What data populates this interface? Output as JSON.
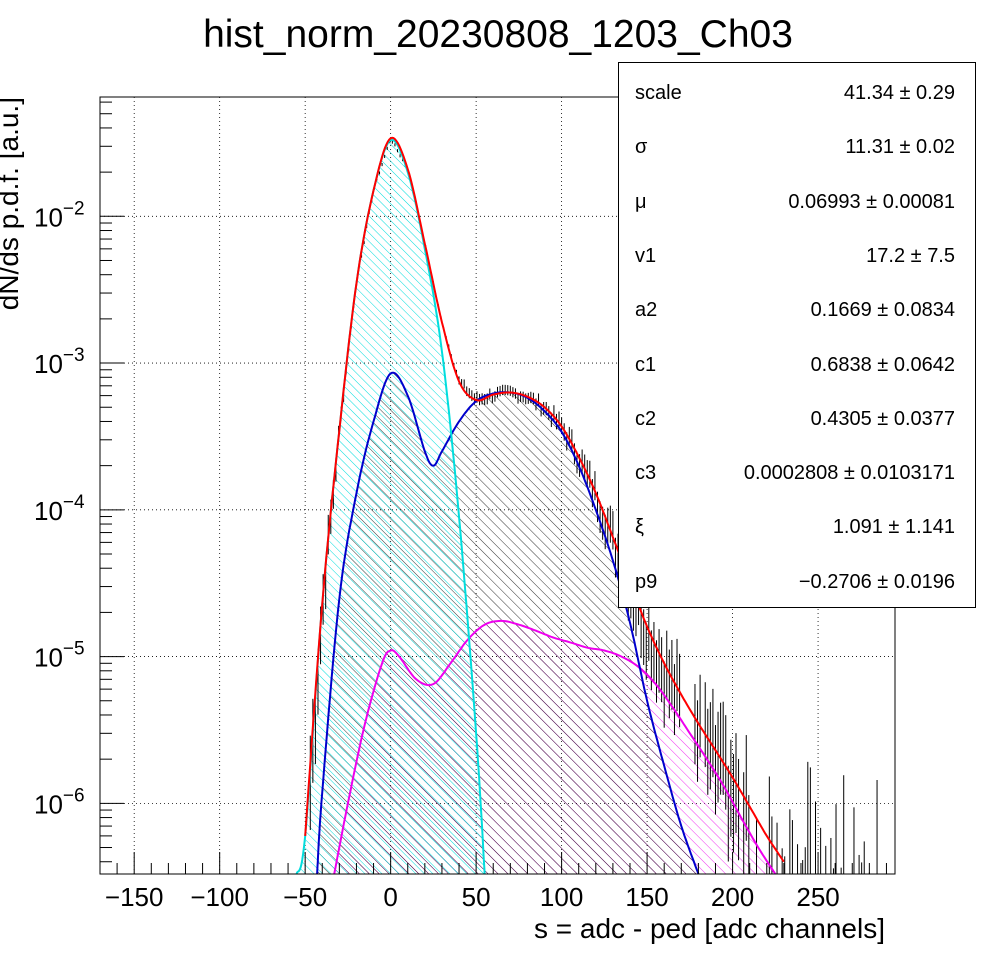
{
  "chart_data": {
    "type": "line",
    "title": "hist_norm_20230808_1203_Ch03",
    "xlabel": "s = adc - ped [adc channels]",
    "ylabel": "dN/ds p.d.f. [a.u.]",
    "xlim": [
      -170,
      295
    ],
    "ylim": [
      3.3e-07,
      0.065
    ],
    "y_scale": "log",
    "grid": true,
    "x_ticks": [
      -150,
      -100,
      -50,
      0,
      50,
      100,
      150,
      200,
      250
    ],
    "x_tick_labels": [
      "−150",
      "−100",
      "−50",
      "0",
      "50",
      "100",
      "150",
      "200",
      "250"
    ],
    "y_ticks": [
      1e-06,
      1e-05,
      0.0001,
      0.001,
      0.01
    ],
    "y_tick_labels": [
      {
        "base": "10",
        "exp": "−6"
      },
      {
        "base": "10",
        "exp": "−5"
      },
      {
        "base": "10",
        "exp": "−4"
      },
      {
        "base": "10",
        "exp": "−3"
      },
      {
        "base": "10",
        "exp": "−2"
      }
    ],
    "series": [
      {
        "role": "total fit",
        "color": "#ff0000",
        "x": [
          -50,
          -40,
          -30,
          -20,
          -10,
          0,
          10,
          20,
          30,
          40,
          50,
          60,
          70,
          80,
          90,
          100,
          110,
          120,
          130,
          140,
          150,
          160,
          170,
          180,
          190,
          200,
          210,
          220,
          230
        ],
        "y": [
          6e-07,
          2.3e-05,
          0.00035,
          0.0035,
          0.015,
          0.034,
          0.021,
          0.0065,
          0.0019,
          0.00075,
          0.00056,
          0.00061,
          0.00063,
          0.00059,
          0.0005,
          0.00037,
          0.00023,
          0.00013,
          6.5e-05,
          3.2e-05,
          1.6e-05,
          9e-06,
          5.5e-06,
          3.5e-06,
          2.3e-06,
          1.5e-06,
          9.5e-07,
          6e-07,
          4e-07
        ]
      },
      {
        "role": "pedestal component",
        "color": "#00dddd",
        "hatch": true,
        "x": [
          -55,
          -50,
          -40,
          -30,
          -20,
          -10,
          0,
          10,
          20,
          30,
          40,
          50,
          55
        ],
        "y": [
          3.3e-07,
          6e-07,
          2.3e-05,
          0.00035,
          0.0035,
          0.015,
          0.033,
          0.02,
          0.006,
          0.0012,
          9e-05,
          3e-06,
          3.3e-07
        ]
      },
      {
        "role": "single photoelectron component",
        "color": "#0000cc",
        "hatch": true,
        "x": [
          -43,
          -40,
          -30,
          -20,
          -10,
          0,
          10,
          20,
          25,
          30,
          40,
          50,
          60,
          70,
          80,
          90,
          100,
          110,
          120,
          130,
          140,
          150,
          160,
          170,
          180
        ],
        "y": [
          3.3e-07,
          1.2e-06,
          2.5e-05,
          0.00013,
          0.0004,
          0.00085,
          0.0006,
          0.00025,
          0.0002,
          0.00025,
          0.0004,
          0.00055,
          0.00062,
          0.00063,
          0.00058,
          0.00047,
          0.00034,
          0.0002,
          0.0001,
          4.5e-05,
          1.7e-05,
          5e-06,
          1.8e-06,
          7e-07,
          3.3e-07
        ]
      },
      {
        "role": "multi photoelectron component",
        "color": "#ee00ee",
        "hatch": true,
        "x": [
          -33,
          -25,
          -15,
          -5,
          0,
          5,
          15,
          25,
          35,
          45,
          55,
          65,
          75,
          85,
          95,
          105,
          115,
          125,
          135,
          145,
          155,
          165,
          175,
          185,
          195,
          205,
          215,
          225
        ],
        "y": [
          3.3e-07,
          1e-06,
          3.5e-06,
          9e-06,
          1.1e-05,
          1e-05,
          7e-06,
          6.5e-06,
          9e-06,
          1.3e-05,
          1.65e-05,
          1.75e-05,
          1.65e-05,
          1.5e-05,
          1.35e-05,
          1.25e-05,
          1.15e-05,
          1.1e-05,
          1e-05,
          8.5e-06,
          6.5e-06,
          4.5e-06,
          3e-06,
          2e-06,
          1.3e-06,
          8e-07,
          5e-07,
          3.3e-07
        ]
      }
    ],
    "stats": [
      {
        "name": "scale",
        "value": "41.34",
        "error": "0.29"
      },
      {
        "name": "σ",
        "value": "11.31",
        "error": "0.02"
      },
      {
        "name": "μ",
        "value": "0.06993",
        "error": "0.00081"
      },
      {
        "name": "v1",
        "value": "17.2",
        "error": "7.5"
      },
      {
        "name": "a2",
        "value": "0.1669",
        "error": "0.0834"
      },
      {
        "name": "c1",
        "value": "0.6838",
        "error": "0.0642"
      },
      {
        "name": "c2",
        "value": "0.4305",
        "error": "0.0377"
      },
      {
        "name": "c3",
        "value": "0.0002808",
        "error": "0.0103171"
      },
      {
        "name": "ξ",
        "value": "1.091",
        "error": "1.141"
      },
      {
        "name": "p9",
        "value": "−0.2706",
        "error": "0.0196"
      }
    ]
  }
}
